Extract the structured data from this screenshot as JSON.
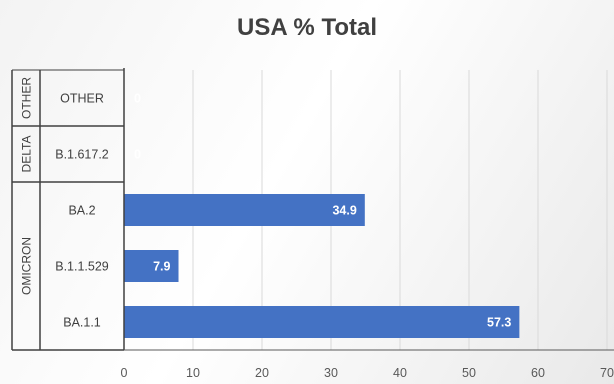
{
  "chart_data": {
    "type": "bar",
    "orientation": "horizontal",
    "title": "USA % Total",
    "xlabel": "",
    "ylabel": "",
    "xlim": [
      0,
      70
    ],
    "x_ticks": [
      0,
      10,
      20,
      30,
      40,
      50,
      60,
      70
    ],
    "grid": "vertical",
    "bar_color": "#4472c4",
    "data_label_color": "#ffffff",
    "groups": [
      {
        "name": "OTHER",
        "categories": [
          "OTHER"
        ]
      },
      {
        "name": "DELTA",
        "categories": [
          "B.1.617.2"
        ]
      },
      {
        "name": "OMICRON",
        "categories": [
          "BA.2",
          "B.1.1.529",
          "BA.1.1"
        ]
      }
    ],
    "categories": [
      "OTHER",
      "B.1.617.2",
      "BA.2",
      "B.1.1.529",
      "BA.1.1"
    ],
    "values": [
      0,
      0,
      34.9,
      7.9,
      57.3
    ],
    "data_labels": [
      "0",
      "0",
      "34.9",
      "7.9",
      "57.3"
    ]
  }
}
